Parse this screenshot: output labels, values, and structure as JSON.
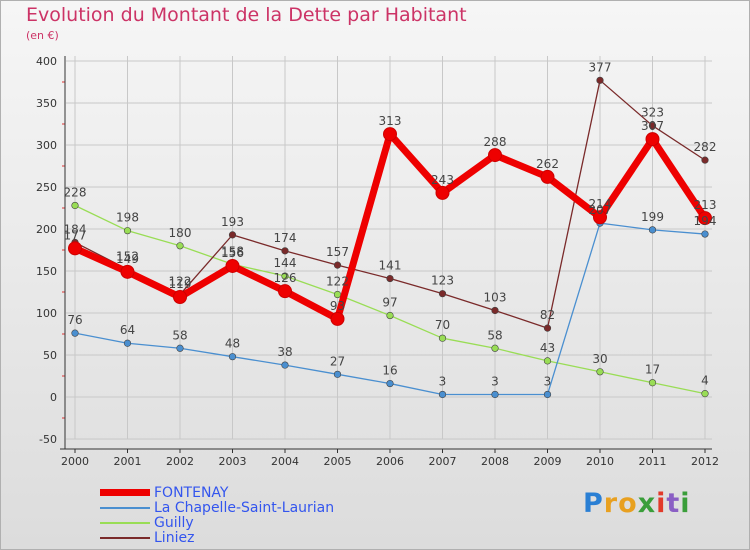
{
  "title": "Evolution du Montant de la Dette par Habitant",
  "unit_label": "(en €)",
  "logo_text": "Proxiti",
  "chart_data": {
    "type": "line",
    "title": "Evolution du Montant de la Dette par Habitant",
    "ylabel": "(en €)",
    "xlabel": "",
    "ylim": [
      -50,
      400
    ],
    "yticks": [
      -50,
      0,
      50,
      100,
      150,
      200,
      250,
      300,
      350,
      400
    ],
    "grid": true,
    "legend_position": "bottom-left",
    "categories": [
      "2000",
      "2001",
      "2002",
      "2003",
      "2004",
      "2005",
      "2006",
      "2007",
      "2008",
      "2009",
      "2010",
      "2011",
      "2012"
    ],
    "series": [
      {
        "name": "FONTENAY",
        "color": "#ee0000",
        "values": [
          177,
          149,
          119,
          156,
          126,
          93,
          313,
          243,
          288,
          262,
          214,
          307,
          213
        ]
      },
      {
        "name": "La Chapelle-Saint-Laurian",
        "color": "#4a8fd0",
        "values": [
          76,
          64,
          58,
          48,
          38,
          27,
          16,
          3,
          3,
          3,
          207,
          199,
          194
        ]
      },
      {
        "name": "Guilly",
        "color": "#99dd55",
        "values": [
          228,
          198,
          180,
          158,
          144,
          122,
          97,
          70,
          58,
          43,
          30,
          17,
          4
        ]
      },
      {
        "name": "Liniez",
        "color": "#7a2a2a",
        "values": [
          184,
          152,
          122,
          193,
          174,
          157,
          141,
          123,
          103,
          82,
          377,
          323,
          282
        ]
      }
    ]
  }
}
